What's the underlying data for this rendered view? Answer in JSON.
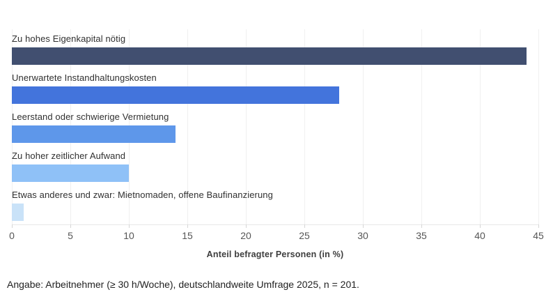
{
  "chart_data": {
    "type": "bar",
    "orientation": "horizontal",
    "categories": [
      "Zu hohes Eigenkapital nötig",
      "Unerwartete Instandhaltungskosten",
      "Leerstand oder schwierige Vermietung",
      "Zu hoher zeitlicher Aufwand",
      "Etwas anderes und zwar: Mietnomaden, offene Baufinanzierung"
    ],
    "values": [
      44,
      28,
      14,
      10,
      1
    ],
    "bar_colors": [
      "#414F70",
      "#4374DC",
      "#5E97EA",
      "#8FC1F7",
      "#C9E2F8"
    ],
    "title": "",
    "xlabel": "Anteil befragter Personen (in %)",
    "ylabel": "",
    "xlim": [
      0,
      45
    ],
    "xticks": [
      0,
      5,
      10,
      15,
      20,
      25,
      30,
      35,
      40,
      45
    ],
    "grid": "vertical-only",
    "legend": "none"
  },
  "footnote": "Angabe: Arbeitnehmer (≥ 30 h/Woche), deutschlandweite Umfrage 2025, n = 201.",
  "colors": {
    "background": "#ffffff",
    "gridline": "#f0f0f0",
    "axis_line": "#e8e8e8",
    "tick_label": "#565656",
    "category_label": "#303030",
    "axis_title": "#3d3d3d",
    "footnote_text": "#222222"
  }
}
